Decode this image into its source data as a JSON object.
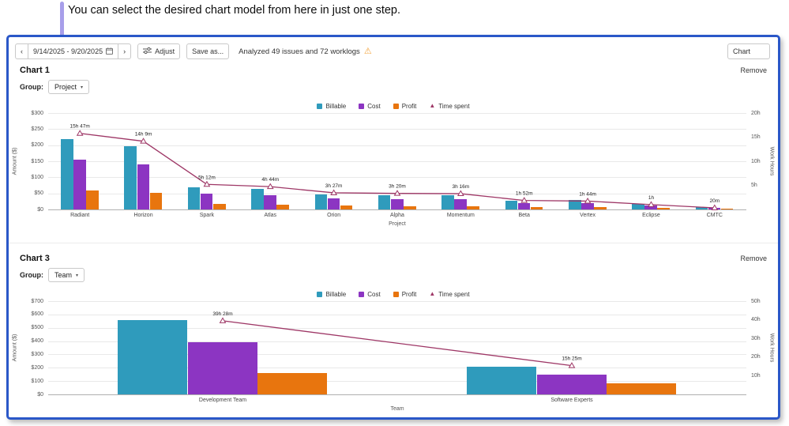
{
  "caption": "You can select the desired chart model from here in just one step.",
  "toolbar": {
    "prev": "‹",
    "next": "›",
    "date_range": "9/14/2025 - 9/20/2025",
    "adjust": "Adjust",
    "save_as": "Save as...",
    "analysis": "Analyzed 49 issues and 72 worklogs",
    "chart_selector": "Chart"
  },
  "icons": {
    "warning": "⚠",
    "chevron_down": "▾",
    "time_marker": "▲"
  },
  "colors": {
    "billable": "#2f9bbc",
    "cost": "#8c35c2",
    "profit": "#e8750e",
    "time": "#9e3766",
    "panel_border": "#2a57c8",
    "annotation": "#998ee6",
    "warning": "#f2a33c",
    "grid": "#e9e9e9",
    "axis": "#b0b0b0"
  },
  "legend": [
    {
      "label": "Billable",
      "marker": "square",
      "color_key": "billable"
    },
    {
      "label": "Cost",
      "marker": "square",
      "color_key": "cost"
    },
    {
      "label": "Profit",
      "marker": "square",
      "color_key": "profit"
    },
    {
      "label": "Time spent",
      "marker": "triangle",
      "color_key": "time"
    }
  ],
  "sections": [
    {
      "title": "Chart 1",
      "remove": "Remove",
      "group_label": "Group:",
      "group_value": "Project"
    },
    {
      "title": "Chart 3",
      "remove": "Remove",
      "group_label": "Group:",
      "group_value": "Team"
    }
  ],
  "chart_data": [
    {
      "type": "bar",
      "title": "Chart 1 - grouped by Project",
      "categories": [
        "Radiant",
        "Horizon",
        "Spark",
        "Atlas",
        "Orion",
        "Alpha",
        "Momentum",
        "Beta",
        "Vertex",
        "Eclipse",
        "CMTC"
      ],
      "series": [
        {
          "name": "Billable",
          "type": "bar",
          "color_key": "billable",
          "values": [
            218,
            197,
            69,
            64,
            47,
            44,
            44,
            27,
            29,
            17,
            7
          ]
        },
        {
          "name": "Cost",
          "type": "bar",
          "color_key": "cost",
          "values": [
            155,
            140,
            49,
            44,
            34,
            32,
            32,
            20,
            20,
            12,
            5
          ]
        },
        {
          "name": "Profit",
          "type": "bar",
          "color_key": "profit",
          "values": [
            59,
            52,
            17,
            15,
            12,
            10,
            10,
            7,
            7,
            5,
            2
          ]
        },
        {
          "name": "Time spent",
          "type": "line",
          "axis": "right",
          "color_key": "time",
          "values_hours": [
            15.78,
            14.15,
            5.2,
            4.73,
            3.45,
            3.33,
            3.27,
            1.87,
            1.73,
            1.0,
            0.33
          ],
          "labels": [
            "15h 47m",
            "14h 9m",
            "5h 12m",
            "4h 44m",
            "3h 27m",
            "3h 20m",
            "3h 16m",
            "1h 52m",
            "1h 44m",
            "1h",
            "20m"
          ]
        }
      ],
      "xlabel": "Project",
      "ylabel_left": "Amount ($)",
      "ylabel_right": "Work Hours",
      "ylim_left": [
        0,
        300
      ],
      "ylim_right": [
        0,
        20
      ],
      "yticks_left": [
        {
          "v": 0,
          "label": "$0"
        },
        {
          "v": 50,
          "label": "$50"
        },
        {
          "v": 100,
          "label": "$100"
        },
        {
          "v": 150,
          "label": "$150"
        },
        {
          "v": 200,
          "label": "$200"
        },
        {
          "v": 250,
          "label": "$250"
        },
        {
          "v": 300,
          "label": "$300"
        }
      ],
      "yticks_right": [
        {
          "v": 5,
          "label": "5h"
        },
        {
          "v": 10,
          "label": "10h"
        },
        {
          "v": 15,
          "label": "15h"
        },
        {
          "v": 20,
          "label": "20h"
        }
      ],
      "grid": true,
      "legend_position": "top-center"
    },
    {
      "type": "bar",
      "title": "Chart 3 - grouped by Team",
      "categories": [
        "Development Team",
        "Software Experts"
      ],
      "series": [
        {
          "name": "Billable",
          "type": "bar",
          "color_key": "billable",
          "values": [
            555,
            210
          ]
        },
        {
          "name": "Cost",
          "type": "bar",
          "color_key": "cost",
          "values": [
            390,
            150
          ]
        },
        {
          "name": "Profit",
          "type": "bar",
          "color_key": "profit",
          "values": [
            160,
            85
          ]
        },
        {
          "name": "Time spent",
          "type": "line",
          "axis": "right",
          "color_key": "time",
          "values_hours": [
            39.47,
            15.42
          ],
          "labels": [
            "39h 28m",
            "15h 25m"
          ]
        }
      ],
      "xlabel": "Team",
      "ylabel_left": "Amount ($)",
      "ylabel_right": "Work Hours",
      "ylim_left": [
        0,
        700
      ],
      "ylim_right": [
        0,
        50
      ],
      "yticks_left": [
        {
          "v": 0,
          "label": "$0"
        },
        {
          "v": 100,
          "label": "$100"
        },
        {
          "v": 200,
          "label": "$200"
        },
        {
          "v": 300,
          "label": "$300"
        },
        {
          "v": 400,
          "label": "$400"
        },
        {
          "v": 500,
          "label": "$500"
        },
        {
          "v": 600,
          "label": "$600"
        },
        {
          "v": 700,
          "label": "$700"
        }
      ],
      "yticks_right": [
        {
          "v": 10,
          "label": "10h"
        },
        {
          "v": 20,
          "label": "20h"
        },
        {
          "v": 30,
          "label": "30h"
        },
        {
          "v": 40,
          "label": "40h"
        },
        {
          "v": 50,
          "label": "50h"
        }
      ],
      "grid": true,
      "legend_position": "top-center"
    }
  ]
}
